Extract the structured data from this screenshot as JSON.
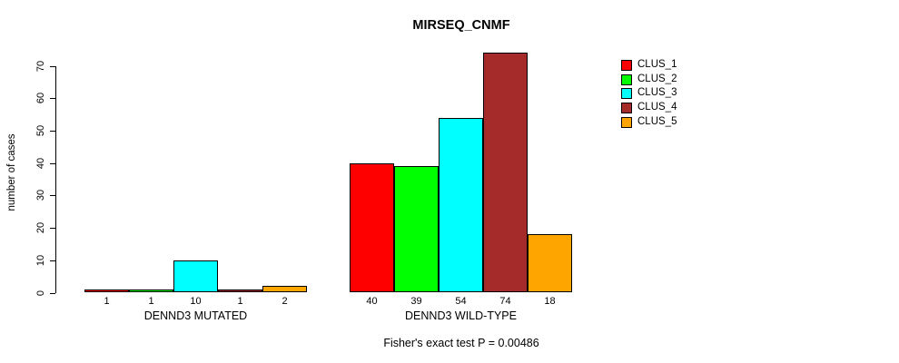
{
  "chart_data": {
    "type": "bar",
    "title": "MIRSEQ_CNMF",
    "ylabel": "number of cases",
    "xlabel": "",
    "ylim": [
      0,
      74
    ],
    "yticks": [
      0,
      10,
      20,
      30,
      40,
      50,
      60,
      70
    ],
    "grid": false,
    "legend_position": "right",
    "series": [
      {
        "name": "CLUS_1",
        "color": "#FF0000"
      },
      {
        "name": "CLUS_2",
        "color": "#00FF00"
      },
      {
        "name": "CLUS_3",
        "color": "#00FFFF"
      },
      {
        "name": "CLUS_4",
        "color": "#A52A2A"
      },
      {
        "name": "CLUS_5",
        "color": "#FFA500"
      }
    ],
    "groups": [
      {
        "label": "DENND3 MUTATED",
        "values": [
          1,
          1,
          10,
          1,
          2
        ]
      },
      {
        "label": "DENND3 WILD-TYPE",
        "values": [
          40,
          39,
          54,
          74,
          18
        ]
      }
    ],
    "bar_value_labels": [
      [
        "1",
        "1",
        "10",
        "1",
        "2"
      ],
      [
        "40",
        "39",
        "54",
        "74",
        "18"
      ]
    ],
    "annotation": "Fisher's exact test P = 0.00486"
  }
}
